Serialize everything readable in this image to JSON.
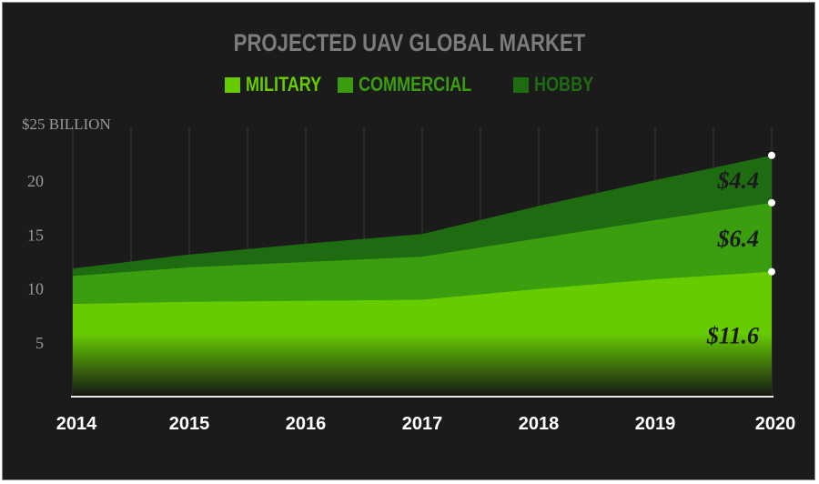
{
  "chart_data": {
    "type": "area",
    "stacked": true,
    "title": "PROJECTED UAV GLOBAL MARKET",
    "y_unit_label": "$25 BILLION",
    "categories": [
      "2014",
      "2015",
      "2016",
      "2017",
      "2018",
      "2019",
      "2020"
    ],
    "ylim": [
      0,
      25
    ],
    "yticks": [
      "5",
      "10",
      "15",
      "20"
    ],
    "grid": "vertical",
    "legend_position": "top",
    "series": [
      {
        "name": "MILITARY",
        "color": "#66cc00",
        "values": [
          8.6,
          8.8,
          8.9,
          9.0,
          10.0,
          10.9,
          11.6
        ]
      },
      {
        "name": "COMMERCIAL",
        "color": "#3a9e0e",
        "values": [
          2.6,
          3.2,
          3.6,
          4.0,
          4.7,
          5.5,
          6.4
        ]
      },
      {
        "name": "HOBBY",
        "color": "#1f6b12",
        "values": [
          0.7,
          1.2,
          1.7,
          2.1,
          3.0,
          3.7,
          4.4
        ]
      }
    ],
    "end_labels": [
      "$11.6",
      "$6.4",
      "$4.4"
    ]
  }
}
